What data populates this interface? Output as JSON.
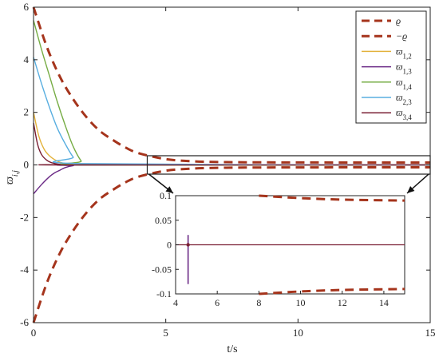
{
  "chart_data": {
    "type": "line",
    "xlabel": "t/s",
    "ylabel": "ϖ_{i,j}",
    "xlim": [
      0,
      15
    ],
    "ylim": [
      -6,
      6
    ],
    "x_ticks": [
      "0",
      "5",
      "10",
      "15"
    ],
    "y_ticks": [
      "-6",
      "-4",
      "-2",
      "0",
      "2",
      "4",
      "6"
    ],
    "grid": false,
    "legend_position": "top-right",
    "colors": {
      "rho": "#a5341c",
      "w12": "#e3b23c",
      "w13": "#6b2a86",
      "w14": "#76ac44",
      "w23": "#58aee0",
      "w34": "#7a1f34"
    },
    "legend": [
      {
        "key": "rho",
        "label": "ϱ",
        "style": "dashed"
      },
      {
        "key": "negrho",
        "label": "−ϱ",
        "style": "dashed"
      },
      {
        "key": "w12",
        "label": "ϖ",
        "sub": "1,2"
      },
      {
        "key": "w13",
        "label": "ϖ",
        "sub": "1,3"
      },
      {
        "key": "w14",
        "label": "ϖ",
        "sub": "1,4"
      },
      {
        "key": "w23",
        "label": "ϖ",
        "sub": "2,3"
      },
      {
        "key": "w34",
        "label": "ϖ",
        "sub": "3,4"
      }
    ],
    "bound": {
      "name": "ϱ",
      "x": [
        0,
        0.5,
        1,
        1.5,
        2,
        2.5,
        3,
        3.5,
        4,
        5,
        6,
        7,
        8,
        10,
        12,
        15
      ],
      "y": [
        6,
        4.5,
        3.35,
        2.5,
        1.82,
        1.3,
        0.95,
        0.65,
        0.44,
        0.22,
        0.14,
        0.11,
        0.1,
        0.095,
        0.092,
        0.09
      ]
    },
    "series": [
      {
        "key": "w12",
        "name": "ϖ_{1,2}",
        "x": [
          0,
          0.2,
          0.4,
          0.6,
          0.8,
          1.0,
          1.2,
          1.5,
          2.0,
          15
        ],
        "y": [
          2.0,
          1.1,
          0.6,
          0.35,
          0.2,
          0.1,
          0.05,
          0.02,
          0,
          0
        ]
      },
      {
        "key": "w13",
        "name": "ϖ_{1,3}",
        "x": [
          0,
          0.3,
          0.6,
          0.8,
          1.0,
          1.2,
          1.5,
          2.0,
          15
        ],
        "y": [
          -1.1,
          -0.75,
          -0.45,
          -0.3,
          -0.2,
          -0.1,
          -0.03,
          0,
          0
        ]
      },
      {
        "key": "w14",
        "name": "ϖ_{1,4}",
        "x": [
          0,
          0.3,
          0.6,
          0.9,
          1.2,
          1.5,
          1.8,
          2.0,
          15
        ],
        "y": [
          5.5,
          4.4,
          3.4,
          2.4,
          1.5,
          0.7,
          0.15,
          0,
          0
        ]
      },
      {
        "key": "w23",
        "name": "ϖ_{2,3}",
        "x": [
          0,
          0.3,
          0.6,
          0.9,
          1.2,
          1.5,
          1.8,
          15
        ],
        "y": [
          4.1,
          3.1,
          2.2,
          1.4,
          0.8,
          0.3,
          0.05,
          0
        ]
      },
      {
        "key": "w34",
        "name": "ϖ_{3,4}",
        "x": [
          0,
          0.15,
          0.3,
          0.5,
          0.7,
          1.0,
          1.3,
          15
        ],
        "y": [
          1.6,
          0.8,
          0.4,
          0.18,
          0.08,
          0.02,
          0,
          0
        ]
      }
    ],
    "inset": {
      "xlim": [
        4,
        15
      ],
      "ylim": [
        -0.1,
        0.1
      ],
      "x_ticks": [
        "4",
        "6",
        "8",
        "10",
        "12",
        "14"
      ],
      "y_ticks": [
        "0.1",
        "0.05",
        "0",
        "-0.05",
        "-0.1"
      ],
      "zoom_box_xlim": [
        4.3,
        15
      ],
      "zoom_box_ylim": [
        -0.35,
        0.35
      ],
      "spike": {
        "x": 4.6,
        "y": [
          0.02,
          -0.08
        ]
      }
    }
  }
}
